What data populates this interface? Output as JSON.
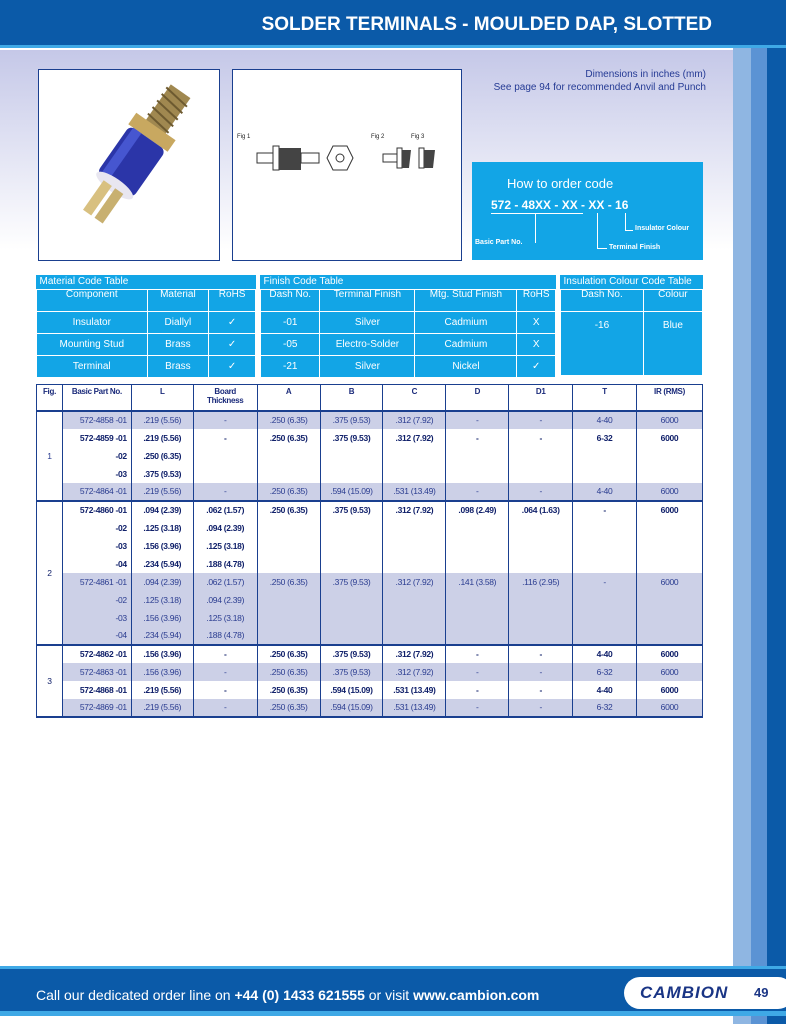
{
  "header": {
    "title": "SOLDER TERMINALS - MOULDED DAP, SLOTTED"
  },
  "notes": {
    "dimensions": "Dimensions in inches (mm)",
    "anvil": "See page 94 for recommended Anvil and Punch"
  },
  "drawing": {
    "fig1": "Fig 1",
    "fig2": "Fig 2",
    "fig3": "Fig 3"
  },
  "order": {
    "title": "How to order code",
    "code": "572 - 48XX - XX - XX - 16",
    "basic": "Basic Part No.",
    "finish": "Terminal Finish",
    "colour": "Insulator Colour"
  },
  "material": {
    "title": "Material Code Table",
    "headers": [
      "Component",
      "Material",
      "RoHS"
    ],
    "rows": [
      [
        "Insulator",
        "Diallyl",
        "✓"
      ],
      [
        "Mounting Stud",
        "Brass",
        "✓"
      ],
      [
        "Terminal",
        "Brass",
        "✓"
      ]
    ]
  },
  "finish": {
    "title": "Finish Code Table",
    "headers": [
      "Dash No.",
      "Terminal Finish",
      "Mtg. Stud Finish",
      "RoHS"
    ],
    "rows": [
      [
        "-01",
        "Silver",
        "Cadmium",
        "X"
      ],
      [
        "-05",
        "Electro-Solder",
        "Cadmium",
        "X"
      ],
      [
        "-21",
        "Silver",
        "Nickel",
        "✓"
      ]
    ]
  },
  "insulation": {
    "title": "Insulation Colour Code Table",
    "headers": [
      "Dash No.",
      "Colour"
    ],
    "rows": [
      [
        "-16",
        "Blue"
      ]
    ]
  },
  "main": {
    "headers": [
      "Fig.",
      "Basic Part No.",
      "L",
      "Board Thickness",
      "A",
      "B",
      "C",
      "D",
      "D1",
      "T",
      "IR (RMS)"
    ],
    "groups": [
      {
        "fig": "1",
        "rows": [
          {
            "s": 1,
            "b": 0,
            "c": [
              "572-4858 -01",
              ".219 (5.56)",
              "-",
              ".250 (6.35)",
              ".375 (9.53)",
              ".312 (7.92)",
              "-",
              "-",
              "4-40",
              "6000"
            ]
          },
          {
            "s": 0,
            "b": 1,
            "c": [
              "572-4859 -01",
              ".219 (5.56)",
              "-",
              ".250 (6.35)",
              ".375 (9.53)",
              ".312 (7.92)",
              "-",
              "-",
              "6-32",
              "6000"
            ]
          },
          {
            "s": 0,
            "b": 1,
            "c": [
              "-02",
              ".250 (6.35)",
              "",
              "",
              "",
              "",
              "",
              "",
              "",
              ""
            ]
          },
          {
            "s": 0,
            "b": 1,
            "c": [
              "-03",
              ".375 (9.53)",
              "",
              "",
              "",
              "",
              "",
              "",
              "",
              ""
            ]
          },
          {
            "s": 1,
            "b": 0,
            "c": [
              "572-4864 -01",
              ".219 (5.56)",
              "-",
              ".250 (6.35)",
              ".594 (15.09)",
              ".531 (13.49)",
              "-",
              "-",
              "4-40",
              "6000"
            ]
          }
        ]
      },
      {
        "fig": "2",
        "rows": [
          {
            "s": 0,
            "b": 1,
            "c": [
              "572-4860 -01",
              ".094 (2.39)",
              ".062 (1.57)",
              ".250 (6.35)",
              ".375 (9.53)",
              ".312 (7.92)",
              ".098 (2.49)",
              ".064 (1.63)",
              "-",
              "6000"
            ]
          },
          {
            "s": 0,
            "b": 1,
            "c": [
              "-02",
              ".125 (3.18)",
              ".094 (2.39)",
              "",
              "",
              "",
              "",
              "",
              "",
              ""
            ]
          },
          {
            "s": 0,
            "b": 1,
            "c": [
              "-03",
              ".156 (3.96)",
              ".125 (3.18)",
              "",
              "",
              "",
              "",
              "",
              "",
              ""
            ]
          },
          {
            "s": 0,
            "b": 1,
            "c": [
              "-04",
              ".234 (5.94)",
              ".188 (4.78)",
              "",
              "",
              "",
              "",
              "",
              "",
              ""
            ]
          },
          {
            "s": 1,
            "b": 0,
            "c": [
              "572-4861 -01",
              ".094 (2.39)",
              ".062 (1.57)",
              ".250 (6.35)",
              ".375 (9.53)",
              ".312 (7.92)",
              ".141 (3.58)",
              ".116 (2.95)",
              "-",
              "6000"
            ]
          },
          {
            "s": 1,
            "b": 0,
            "c": [
              "-02",
              ".125 (3.18)",
              ".094 (2.39)",
              "",
              "",
              "",
              "",
              "",
              "",
              ""
            ]
          },
          {
            "s": 1,
            "b": 0,
            "c": [
              "-03",
              ".156 (3.96)",
              ".125 (3.18)",
              "",
              "",
              "",
              "",
              "",
              "",
              ""
            ]
          },
          {
            "s": 1,
            "b": 0,
            "c": [
              "-04",
              ".234 (5.94)",
              ".188 (4.78)",
              "",
              "",
              "",
              "",
              "",
              "",
              ""
            ]
          }
        ]
      },
      {
        "fig": "3",
        "rows": [
          {
            "s": 0,
            "b": 1,
            "c": [
              "572-4862 -01",
              ".156 (3.96)",
              "-",
              ".250 (6.35)",
              ".375 (9.53)",
              ".312 (7.92)",
              "-",
              "-",
              "4-40",
              "6000"
            ]
          },
          {
            "s": 1,
            "b": 0,
            "c": [
              "572-4863 -01",
              ".156 (3.96)",
              "-",
              ".250 (6.35)",
              ".375 (9.53)",
              ".312 (7.92)",
              "-",
              "-",
              "6-32",
              "6000"
            ]
          },
          {
            "s": 0,
            "b": 1,
            "c": [
              "572-4868 -01",
              ".219 (5.56)",
              "-",
              ".250 (6.35)",
              ".594 (15.09)",
              ".531 (13.49)",
              "-",
              "-",
              "4-40",
              "6000"
            ]
          },
          {
            "s": 1,
            "b": 0,
            "c": [
              "572-4869 -01",
              ".219 (5.56)",
              "-",
              ".250 (6.35)",
              ".594 (15.09)",
              ".531 (13.49)",
              "-",
              "-",
              "6-32",
              "6000"
            ]
          }
        ]
      }
    ]
  },
  "footer": {
    "prefix": "Call our dedicated order line on ",
    "phone": "+44 (0) 1433 621555",
    "mid": " or visit ",
    "url": "www.cambion.com",
    "logo": "CAMBION",
    "page": "49"
  },
  "colors": {
    "brand_blue": "#0b5aa8",
    "cyan": "#12a5e6",
    "shade": "#ccd0e7"
  }
}
